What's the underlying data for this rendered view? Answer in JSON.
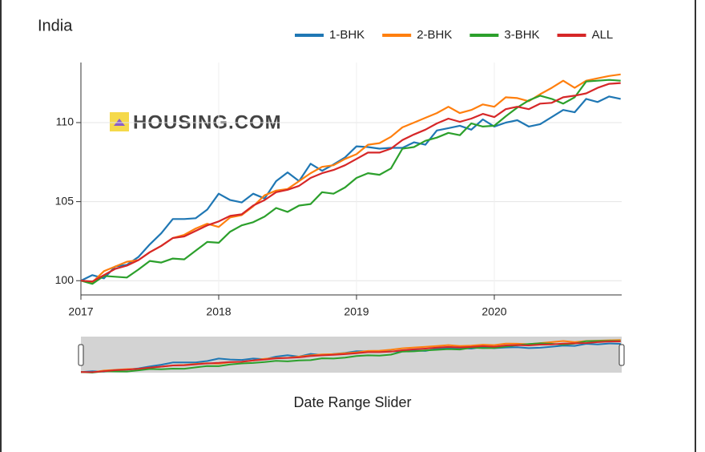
{
  "chart_data": {
    "type": "line",
    "title": "India",
    "watermark": "HOUSING.COM",
    "slider_label": "Date Range Slider",
    "categories": [
      "2017",
      null,
      null,
      null,
      null,
      null,
      null,
      null,
      null,
      null,
      null,
      null,
      "2018",
      null,
      null,
      null,
      null,
      null,
      null,
      null,
      null,
      null,
      null,
      null,
      "2019",
      null,
      null,
      null,
      null,
      null,
      null,
      null,
      null,
      null,
      null,
      null,
      "2020",
      null,
      null,
      null,
      null,
      null,
      null,
      null,
      null,
      null,
      null,
      null
    ],
    "ylim": [
      99.1,
      113.8
    ],
    "yticks": [
      100,
      105,
      110
    ],
    "grid": true,
    "legend": "top-right",
    "series": [
      {
        "name": "1-BHK",
        "color": "#1f77b4",
        "values": [
          100,
          100.35,
          100.15,
          100.9,
          101.0,
          101.5,
          102.3,
          103.0,
          103.9,
          103.9,
          103.95,
          104.5,
          105.5,
          105.1,
          104.95,
          105.5,
          105.2,
          106.3,
          106.85,
          106.3,
          107.4,
          106.95,
          107.35,
          107.8,
          108.5,
          108.45,
          108.35,
          108.4,
          108.4,
          108.75,
          108.6,
          109.5,
          109.65,
          109.8,
          109.55,
          110.2,
          109.75,
          110.0,
          110.15,
          109.75,
          109.9,
          110.35,
          110.8,
          110.65,
          111.5,
          111.3,
          111.65,
          111.5
        ]
      },
      {
        "name": "2-BHK",
        "color": "#ff7f0e",
        "values": [
          100,
          99.9,
          100.6,
          100.9,
          101.2,
          101.3,
          101.8,
          102.2,
          102.7,
          102.9,
          103.3,
          103.6,
          103.4,
          104.0,
          104.15,
          104.7,
          105.4,
          105.7,
          105.8,
          106.3,
          106.8,
          107.2,
          107.3,
          107.7,
          108.0,
          108.6,
          108.7,
          109.1,
          109.7,
          110.0,
          110.3,
          110.6,
          111.0,
          110.6,
          110.8,
          111.15,
          111.0,
          111.6,
          111.55,
          111.35,
          111.8,
          112.2,
          112.65,
          112.2,
          112.65,
          112.8,
          112.95,
          113.05
        ]
      },
      {
        "name": "3-BHK",
        "color": "#2ca02c",
        "values": [
          100,
          99.8,
          100.3,
          100.25,
          100.2,
          100.7,
          101.25,
          101.15,
          101.4,
          101.35,
          101.9,
          102.45,
          102.4,
          103.1,
          103.5,
          103.7,
          104.05,
          104.6,
          104.35,
          104.75,
          104.85,
          105.6,
          105.5,
          105.9,
          106.5,
          106.8,
          106.7,
          107.1,
          108.35,
          108.45,
          108.85,
          109.05,
          109.35,
          109.2,
          109.95,
          109.75,
          109.8,
          110.4,
          110.95,
          111.4,
          111.7,
          111.5,
          111.2,
          111.6,
          112.6,
          112.65,
          112.7,
          112.65
        ]
      },
      {
        "name": "ALL",
        "color": "#d62728",
        "values": [
          100,
          99.95,
          100.35,
          100.75,
          100.95,
          101.3,
          101.8,
          102.2,
          102.7,
          102.8,
          103.15,
          103.5,
          103.75,
          104.1,
          104.2,
          104.75,
          105.1,
          105.6,
          105.75,
          106.0,
          106.5,
          106.8,
          107.0,
          107.3,
          107.7,
          108.1,
          108.1,
          108.35,
          108.9,
          109.25,
          109.55,
          109.95,
          110.25,
          110.05,
          110.25,
          110.55,
          110.35,
          110.85,
          111.0,
          110.85,
          111.2,
          111.25,
          111.6,
          111.7,
          111.85,
          112.2,
          112.45,
          112.5
        ]
      }
    ]
  }
}
